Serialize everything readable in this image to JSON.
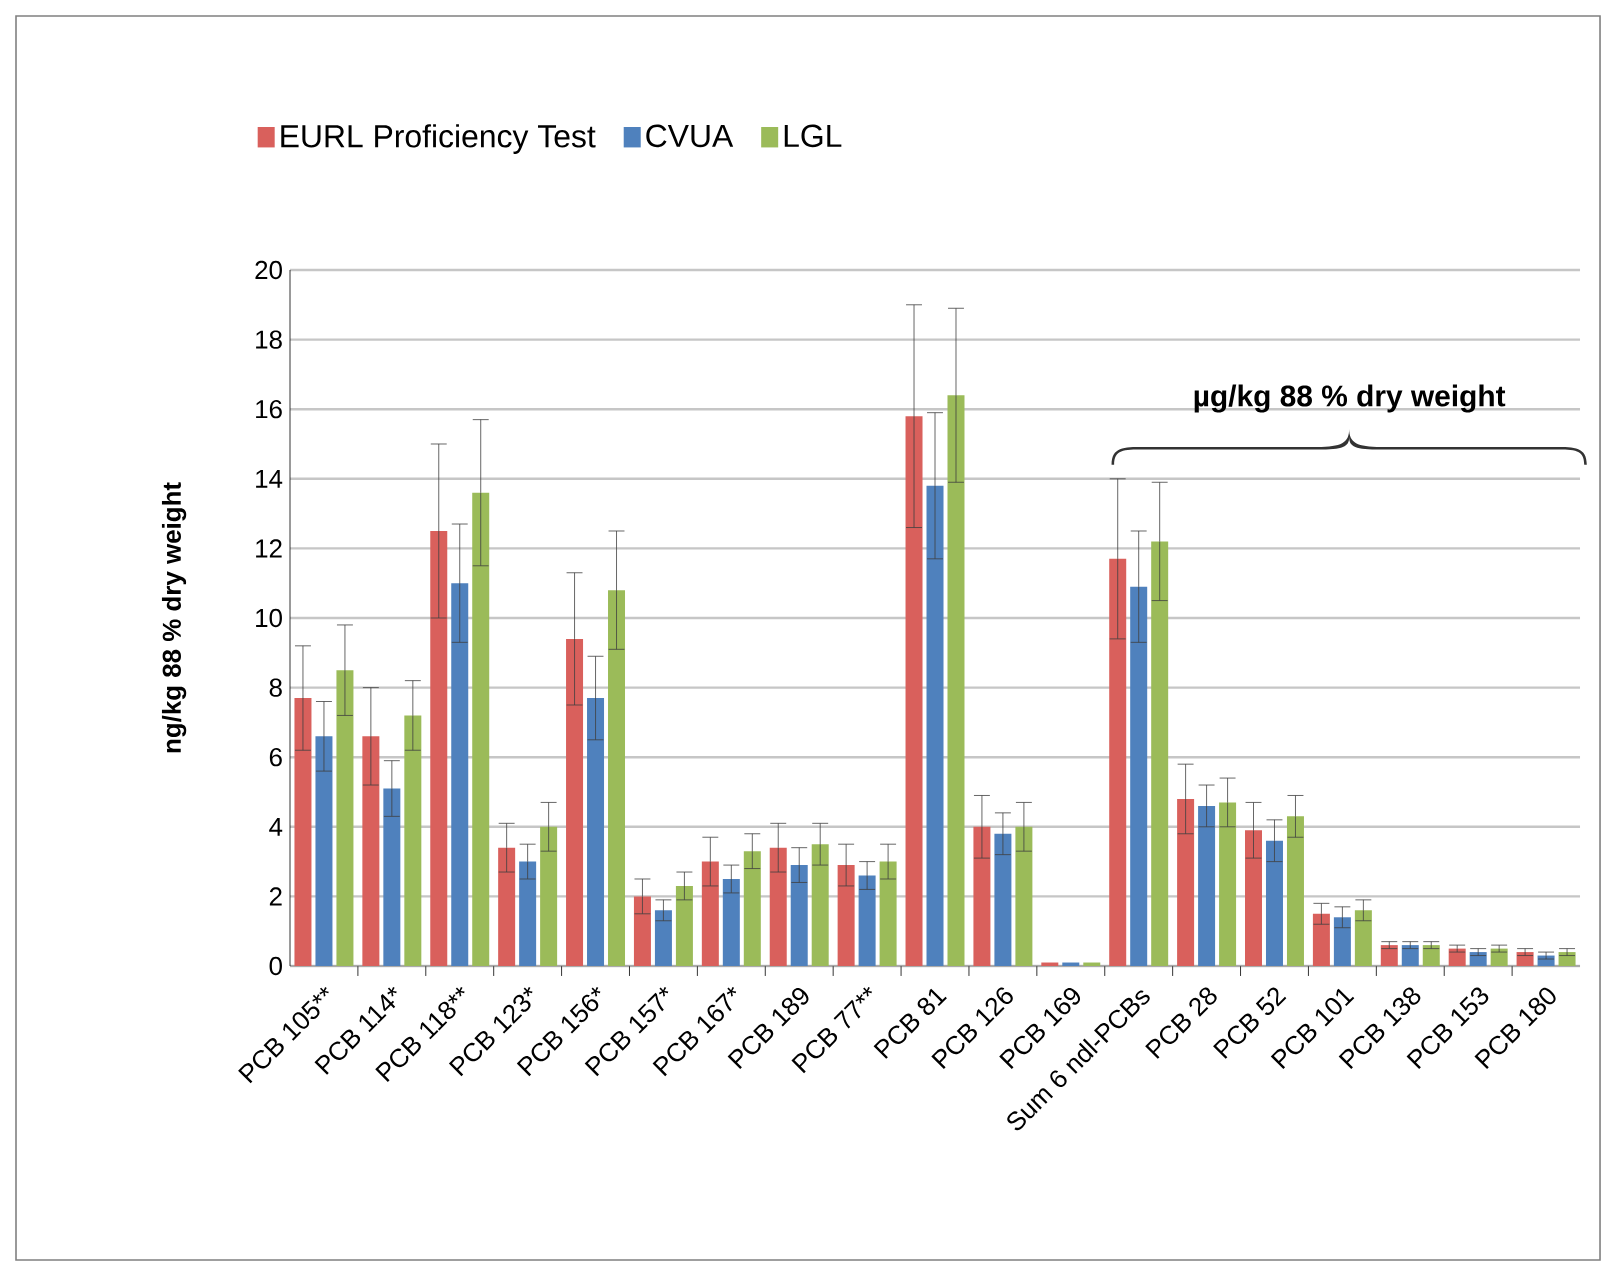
{
  "chart_data": {
    "type": "bar",
    "ylabel": "ng/kg 88 % dry weight",
    "annotations": [
      "µg/kg 88 % dry weight"
    ],
    "categories": [
      "PCB 105**",
      "PCB 114*",
      "PCB 118**",
      "PCB 123*",
      "PCB 156*",
      "PCB 157*",
      "PCB 167*",
      "PCB 189",
      "PCB 77**",
      "PCB 81",
      "PCB 126",
      "PCB 169",
      "Sum 6 ndl-PCBs",
      "PCB 28",
      "PCB 52",
      "PCB 101",
      "PCB 138",
      "PCB 153",
      "PCB 180"
    ],
    "series": [
      {
        "name": "EURL Proficiency Test",
        "color": "#d9605c",
        "values": [
          7.7,
          6.6,
          12.5,
          3.4,
          9.4,
          2.0,
          3.0,
          3.4,
          2.9,
          15.8,
          4.0,
          0.1,
          11.7,
          4.8,
          3.9,
          1.5,
          0.6,
          0.5,
          0.4
        ],
        "errors": [
          1.5,
          1.4,
          2.5,
          0.7,
          1.9,
          0.5,
          0.7,
          0.7,
          0.6,
          3.2,
          0.9,
          null,
          2.3,
          1.0,
          0.8,
          0.3,
          0.1,
          0.1,
          0.1
        ]
      },
      {
        "name": "CVUA",
        "color": "#4f81bd",
        "values": [
          6.6,
          5.1,
          11.0,
          3.0,
          7.7,
          1.6,
          2.5,
          2.9,
          2.6,
          13.8,
          3.8,
          0.1,
          10.9,
          4.6,
          3.6,
          1.4,
          0.6,
          0.4,
          0.3
        ],
        "errors": [
          1.0,
          0.8,
          1.7,
          0.5,
          1.2,
          0.3,
          0.4,
          0.5,
          0.4,
          2.1,
          0.6,
          null,
          1.6,
          0.6,
          0.6,
          0.3,
          0.1,
          0.1,
          0.1
        ]
      },
      {
        "name": "LGL",
        "color": "#9bbb59",
        "values": [
          8.5,
          7.2,
          13.6,
          4.0,
          10.8,
          2.3,
          3.3,
          3.5,
          3.0,
          16.4,
          4.0,
          0.1,
          12.2,
          4.7,
          4.3,
          1.6,
          0.6,
          0.5,
          0.4
        ],
        "errors": [
          1.3,
          1.0,
          2.1,
          0.7,
          1.7,
          0.4,
          0.5,
          0.6,
          0.5,
          2.5,
          0.7,
          null,
          1.7,
          0.7,
          0.6,
          0.3,
          0.1,
          0.1,
          0.1
        ]
      }
    ],
    "ylim": [
      0,
      20
    ],
    "yticks": [
      0,
      2,
      4,
      6,
      8,
      10,
      12,
      14,
      16,
      18,
      20
    ],
    "grid": "y",
    "legend": "top left"
  }
}
